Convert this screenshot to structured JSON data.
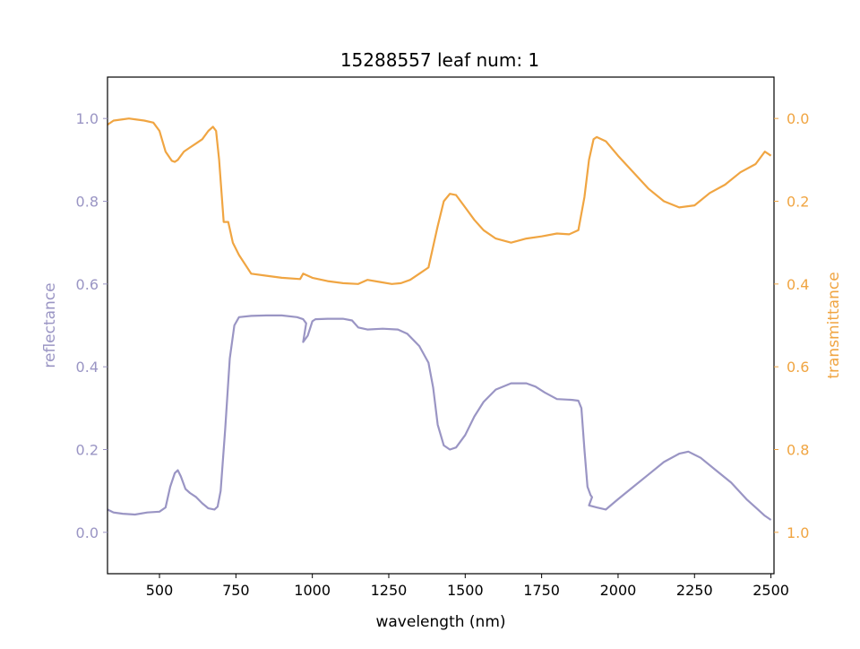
{
  "chart_data": {
    "type": "line",
    "title": "15288557 leaf num: 1",
    "xlabel": "wavelength (nm)",
    "xlim": [
      330,
      2510
    ],
    "x_ticks": [
      500,
      750,
      1000,
      1250,
      1500,
      1750,
      2000,
      2250,
      2500
    ],
    "left_axis": {
      "label": "reflectance",
      "ylim": [
        -0.1,
        1.1
      ],
      "ticks": [
        0.0,
        0.2,
        0.4,
        0.6,
        0.8,
        1.0
      ],
      "color": "#9A95C4"
    },
    "right_axis": {
      "label": "transmittance",
      "ylim": [
        1.1,
        -0.1
      ],
      "inverted": true,
      "ticks": [
        0.0,
        0.2,
        0.4,
        0.6,
        0.8,
        1.0
      ],
      "color": "#F0A542"
    },
    "series": [
      {
        "axis": "left",
        "color": "#9A95C4",
        "points": [
          [
            330,
            0.055
          ],
          [
            350,
            0.048
          ],
          [
            380,
            0.045
          ],
          [
            420,
            0.043
          ],
          [
            460,
            0.048
          ],
          [
            500,
            0.05
          ],
          [
            520,
            0.06
          ],
          [
            535,
            0.11
          ],
          [
            550,
            0.143
          ],
          [
            560,
            0.15
          ],
          [
            570,
            0.135
          ],
          [
            585,
            0.105
          ],
          [
            600,
            0.095
          ],
          [
            620,
            0.085
          ],
          [
            640,
            0.07
          ],
          [
            660,
            0.058
          ],
          [
            680,
            0.055
          ],
          [
            690,
            0.062
          ],
          [
            700,
            0.1
          ],
          [
            715,
            0.25
          ],
          [
            730,
            0.42
          ],
          [
            745,
            0.5
          ],
          [
            760,
            0.52
          ],
          [
            800,
            0.523
          ],
          [
            850,
            0.524
          ],
          [
            900,
            0.524
          ],
          [
            950,
            0.52
          ],
          [
            970,
            0.515
          ],
          [
            980,
            0.505
          ],
          [
            970,
            0.46
          ],
          [
            985,
            0.475
          ],
          [
            1000,
            0.51
          ],
          [
            1010,
            0.515
          ],
          [
            1050,
            0.516
          ],
          [
            1100,
            0.516
          ],
          [
            1130,
            0.512
          ],
          [
            1150,
            0.495
          ],
          [
            1180,
            0.49
          ],
          [
            1230,
            0.492
          ],
          [
            1280,
            0.49
          ],
          [
            1310,
            0.48
          ],
          [
            1350,
            0.45
          ],
          [
            1380,
            0.41
          ],
          [
            1395,
            0.35
          ],
          [
            1410,
            0.26
          ],
          [
            1430,
            0.21
          ],
          [
            1450,
            0.2
          ],
          [
            1470,
            0.205
          ],
          [
            1500,
            0.235
          ],
          [
            1530,
            0.28
          ],
          [
            1560,
            0.315
          ],
          [
            1600,
            0.345
          ],
          [
            1650,
            0.36
          ],
          [
            1700,
            0.36
          ],
          [
            1730,
            0.352
          ],
          [
            1760,
            0.338
          ],
          [
            1800,
            0.322
          ],
          [
            1850,
            0.32
          ],
          [
            1870,
            0.318
          ],
          [
            1880,
            0.3
          ],
          [
            1890,
            0.2
          ],
          [
            1900,
            0.11
          ],
          [
            1910,
            0.09
          ],
          [
            1915,
            0.085
          ],
          [
            1905,
            0.065
          ],
          [
            1930,
            0.06
          ],
          [
            1960,
            0.055
          ],
          [
            2000,
            0.08
          ],
          [
            2050,
            0.11
          ],
          [
            2100,
            0.14
          ],
          [
            2150,
            0.17
          ],
          [
            2200,
            0.19
          ],
          [
            2230,
            0.195
          ],
          [
            2270,
            0.18
          ],
          [
            2320,
            0.15
          ],
          [
            2370,
            0.12
          ],
          [
            2420,
            0.08
          ],
          [
            2450,
            0.06
          ],
          [
            2480,
            0.04
          ],
          [
            2500,
            0.03
          ]
        ]
      },
      {
        "axis": "right",
        "color": "#F0A542",
        "points": [
          [
            330,
            0.015
          ],
          [
            350,
            0.005
          ],
          [
            380,
            0.002
          ],
          [
            400,
            0.0
          ],
          [
            420,
            0.002
          ],
          [
            450,
            0.005
          ],
          [
            480,
            0.01
          ],
          [
            500,
            0.03
          ],
          [
            520,
            0.08
          ],
          [
            540,
            0.102
          ],
          [
            550,
            0.105
          ],
          [
            560,
            0.1
          ],
          [
            580,
            0.08
          ],
          [
            600,
            0.07
          ],
          [
            620,
            0.06
          ],
          [
            640,
            0.05
          ],
          [
            660,
            0.03
          ],
          [
            675,
            0.02
          ],
          [
            685,
            0.03
          ],
          [
            695,
            0.1
          ],
          [
            710,
            0.25
          ],
          [
            725,
            0.25
          ],
          [
            740,
            0.3
          ],
          [
            760,
            0.33
          ],
          [
            800,
            0.375
          ],
          [
            850,
            0.38
          ],
          [
            900,
            0.385
          ],
          [
            960,
            0.388
          ],
          [
            970,
            0.375
          ],
          [
            1000,
            0.385
          ],
          [
            1050,
            0.393
          ],
          [
            1100,
            0.398
          ],
          [
            1150,
            0.4
          ],
          [
            1180,
            0.39
          ],
          [
            1220,
            0.395
          ],
          [
            1260,
            0.4
          ],
          [
            1290,
            0.398
          ],
          [
            1320,
            0.39
          ],
          [
            1350,
            0.375
          ],
          [
            1380,
            0.36
          ],
          [
            1410,
            0.26
          ],
          [
            1430,
            0.2
          ],
          [
            1450,
            0.182
          ],
          [
            1470,
            0.185
          ],
          [
            1500,
            0.215
          ],
          [
            1530,
            0.245
          ],
          [
            1560,
            0.27
          ],
          [
            1600,
            0.29
          ],
          [
            1650,
            0.3
          ],
          [
            1700,
            0.29
          ],
          [
            1750,
            0.285
          ],
          [
            1800,
            0.278
          ],
          [
            1840,
            0.28
          ],
          [
            1870,
            0.27
          ],
          [
            1890,
            0.19
          ],
          [
            1905,
            0.1
          ],
          [
            1920,
            0.05
          ],
          [
            1930,
            0.045
          ],
          [
            1960,
            0.055
          ],
          [
            2000,
            0.09
          ],
          [
            2050,
            0.13
          ],
          [
            2100,
            0.17
          ],
          [
            2150,
            0.2
          ],
          [
            2200,
            0.215
          ],
          [
            2250,
            0.21
          ],
          [
            2300,
            0.18
          ],
          [
            2350,
            0.16
          ],
          [
            2400,
            0.13
          ],
          [
            2450,
            0.11
          ],
          [
            2480,
            0.08
          ],
          [
            2500,
            0.09
          ]
        ]
      }
    ]
  }
}
